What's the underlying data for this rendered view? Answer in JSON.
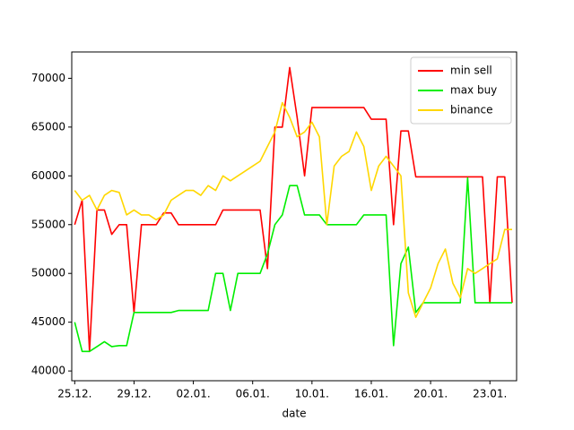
{
  "chart_data": {
    "type": "line",
    "xlabel": "date",
    "x": [
      0,
      0.5,
      1,
      1.5,
      2,
      2.5,
      3,
      3.5,
      4,
      4.5,
      5,
      5.5,
      6,
      6.5,
      7,
      7.5,
      8,
      8.5,
      9,
      9.5,
      10,
      10.5,
      11,
      11.5,
      12,
      12.5,
      13,
      13.5,
      14,
      14.5,
      15,
      15.5,
      16,
      16.5,
      17,
      17.5,
      18,
      18.5,
      19,
      19.5,
      20,
      20.5,
      21,
      21.5,
      22,
      22.5,
      23,
      23.5,
      24,
      24.5,
      25,
      25.5,
      26,
      26.5,
      27,
      27.5,
      28,
      28.5,
      29,
      29.5
    ],
    "series": [
      {
        "name": "min sell",
        "color": "#ff0000",
        "values": [
          55000,
          57500,
          42000,
          56500,
          56500,
          54000,
          55000,
          55000,
          46000,
          55000,
          55000,
          55000,
          56200,
          56200,
          55000,
          55000,
          55000,
          55000,
          55000,
          55000,
          56500,
          56500,
          56500,
          56500,
          56500,
          56500,
          50500,
          65000,
          65000,
          71100,
          66000,
          60000,
          67000,
          67000,
          67000,
          67000,
          67000,
          67000,
          67000,
          67000,
          65800,
          65800,
          65800,
          55000,
          64600,
          64600,
          59900,
          59900,
          59900,
          59900,
          59900,
          59900,
          59900,
          59900,
          59900,
          59900,
          47000,
          59900,
          59900,
          47000
        ]
      },
      {
        "name": "max buy",
        "color": "#00ee00",
        "values": [
          45000,
          42000,
          42000,
          42500,
          43000,
          42500,
          42600,
          42600,
          46000,
          46000,
          46000,
          46000,
          46000,
          46000,
          46200,
          46200,
          46200,
          46200,
          46200,
          50000,
          50000,
          46200,
          50000,
          50000,
          50000,
          50000,
          52000,
          55000,
          56000,
          59000,
          59000,
          56000,
          56000,
          56000,
          55000,
          55000,
          55000,
          55000,
          55000,
          56000,
          56000,
          56000,
          56000,
          42600,
          51000,
          52700,
          46000,
          47000,
          47000,
          47000,
          47000,
          47000,
          47000,
          59800,
          47000,
          47000,
          47000,
          47000,
          47000,
          47000
        ]
      },
      {
        "name": "binance",
        "color": "#ffd700",
        "values": [
          58500,
          57500,
          58000,
          56500,
          58000,
          58500,
          58300,
          56000,
          56500,
          56000,
          56000,
          55500,
          56000,
          57500,
          58000,
          58500,
          58500,
          58000,
          59000,
          58500,
          60000,
          59500,
          60000,
          60500,
          61000,
          61500,
          63000,
          64500,
          67500,
          66000,
          64000,
          64500,
          65500,
          64000,
          55000,
          61000,
          62000,
          62500,
          64500,
          63000,
          58500,
          61000,
          62000,
          61000,
          60000,
          48000,
          45500,
          47000,
          48500,
          51000,
          52500,
          49000,
          47500,
          50500,
          50000,
          50500,
          51000,
          51500,
          54500,
          54500
        ]
      }
    ],
    "xlim": [
      -0.2,
      29.8
    ],
    "xticks": [
      {
        "value": 0,
        "label": "25.12."
      },
      {
        "value": 4,
        "label": "29.12."
      },
      {
        "value": 8,
        "label": "02.01."
      },
      {
        "value": 12,
        "label": "06.01."
      },
      {
        "value": 16,
        "label": "10.01."
      },
      {
        "value": 20,
        "label": "16.01."
      },
      {
        "value": 24,
        "label": "20.01."
      },
      {
        "value": 28,
        "label": "23.01."
      }
    ],
    "ylim": [
      39000,
      72700
    ],
    "yticks": [
      40000,
      45000,
      50000,
      55000,
      60000,
      65000,
      70000
    ],
    "legend": "upper right"
  }
}
